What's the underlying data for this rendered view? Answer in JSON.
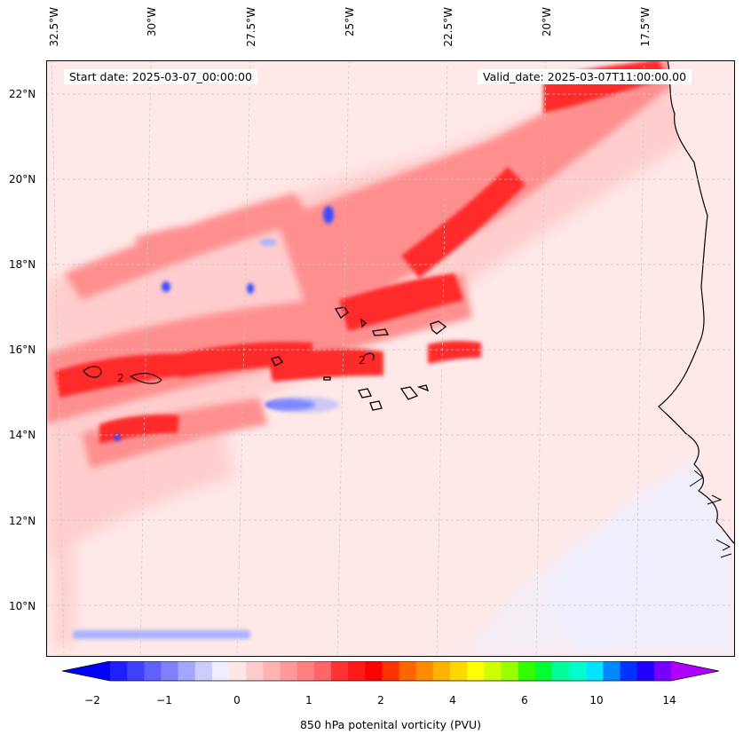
{
  "header": {
    "start_date": "Start date: 2025-03-07_00:00:00",
    "valid_date": "Valid_date: 2025-03-07T11:00:00.00"
  },
  "axes": {
    "longitude_labels": [
      "32.5°W",
      "30°W",
      "27.5°W",
      "25°W",
      "22.5°W",
      "20°W",
      "17.5°W"
    ],
    "latitude_labels": [
      "22°N",
      "20°N",
      "18°N",
      "16°N",
      "14°N",
      "12°N",
      "10°N"
    ]
  },
  "map": {
    "field": "850 hPa potential vorticity",
    "contour_label": "2",
    "colors": {
      "strong_negative": "#2b3cff",
      "weak_negative": "#eef0ff",
      "weak_positive": "#ffe6e6",
      "moderate_positive": "#ff8a8a",
      "strong_positive": "#ff1c1c",
      "land_outline": "#000000"
    }
  },
  "colorbar": {
    "tick_labels": [
      "−2",
      "−1",
      "0",
      "1",
      "2",
      "4",
      "6",
      "10",
      "14"
    ],
    "label": "850 hPa potenital vorticity (PVU)",
    "colors": [
      "#0000ff",
      "#2020ff",
      "#4040ff",
      "#6060ff",
      "#8080ff",
      "#a6a6ff",
      "#ccccff",
      "#eeeeff",
      "#ffe6e6",
      "#ffcccc",
      "#ffb3b3",
      "#ff9999",
      "#ff8080",
      "#ff6666",
      "#ff3333",
      "#ff1a1a",
      "#ff0000",
      "#ff3300",
      "#ff6600",
      "#ff8c00",
      "#ffb300",
      "#ffd800",
      "#ffff00",
      "#ccff00",
      "#99ff00",
      "#33ff00",
      "#00ff33",
      "#00ff99",
      "#00ffcc",
      "#00e5ff",
      "#0088ff",
      "#0033ff",
      "#2200ff",
      "#7700ff",
      "#b000ff"
    ]
  }
}
